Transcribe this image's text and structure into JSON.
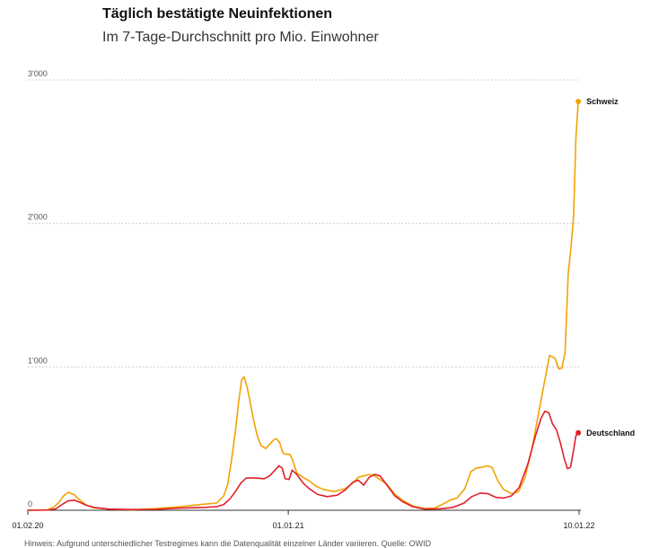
{
  "header": {
    "title": "Täglich bestätigte Neuinfektionen",
    "subtitle": "Im 7-Tage-Durchschnitt pro Mio. Einwohner"
  },
  "footnote": "Hinweis: Aufgrund unterschiedlicher Testregimes kann die Datenqualität einzelner Länder variieren. Quelle: OWID",
  "colors": {
    "schweiz": "#f2a300",
    "deutschland": "#e0202a",
    "grid": "#cfcfcf",
    "axis": "#333333"
  },
  "chart_data": {
    "type": "line",
    "title": "Täglich bestätigte Neuinfektionen",
    "subtitle": "Im 7-Tage-Durchschnitt pro Mio. Einwohner",
    "xlabel": "",
    "ylabel": "",
    "xlim": [
      "2020-02-01",
      "2022-01-10"
    ],
    "ylim": [
      0,
      3000
    ],
    "grid": true,
    "x_ticks": [
      {
        "date": "2020-02-01",
        "label": "01.02.20"
      },
      {
        "date": "2021-01-01",
        "label": "01.01.21"
      },
      {
        "date": "2022-01-10",
        "label": "10.01.22"
      }
    ],
    "y_ticks": [
      {
        "value": 0,
        "label": "0"
      },
      {
        "value": 1000,
        "label": "1'000"
      },
      {
        "value": 2000,
        "label": "2'000"
      },
      {
        "value": 3000,
        "label": "3'000"
      }
    ],
    "series": [
      {
        "name": "Schweiz",
        "color": "#f2a300",
        "points": [
          [
            "2020-02-01",
            0
          ],
          [
            "2020-02-25",
            2
          ],
          [
            "2020-03-05",
            20
          ],
          [
            "2020-03-12",
            55
          ],
          [
            "2020-03-18",
            100
          ],
          [
            "2020-03-24",
            125
          ],
          [
            "2020-03-31",
            110
          ],
          [
            "2020-04-07",
            75
          ],
          [
            "2020-04-15",
            40
          ],
          [
            "2020-04-25",
            18
          ],
          [
            "2020-05-15",
            8
          ],
          [
            "2020-06-15",
            4
          ],
          [
            "2020-07-15",
            12
          ],
          [
            "2020-08-15",
            25
          ],
          [
            "2020-09-01",
            35
          ],
          [
            "2020-09-20",
            45
          ],
          [
            "2020-10-01",
            50
          ],
          [
            "2020-10-10",
            100
          ],
          [
            "2020-10-15",
            180
          ],
          [
            "2020-10-20",
            350
          ],
          [
            "2020-10-25",
            550
          ],
          [
            "2020-10-29",
            750
          ],
          [
            "2020-11-02",
            910
          ],
          [
            "2020-11-05",
            930
          ],
          [
            "2020-11-09",
            860
          ],
          [
            "2020-11-12",
            780
          ],
          [
            "2020-11-17",
            640
          ],
          [
            "2020-11-22",
            520
          ],
          [
            "2020-11-27",
            450
          ],
          [
            "2020-12-03",
            430
          ],
          [
            "2020-12-08",
            460
          ],
          [
            "2020-12-13",
            490
          ],
          [
            "2020-12-17",
            500
          ],
          [
            "2020-12-21",
            470
          ],
          [
            "2020-12-25",
            400
          ],
          [
            "2020-12-29",
            390
          ],
          [
            "2021-01-03",
            390
          ],
          [
            "2021-01-06",
            360
          ],
          [
            "2021-01-12",
            260
          ],
          [
            "2021-01-20",
            230
          ],
          [
            "2021-01-28",
            205
          ],
          [
            "2021-02-05",
            170
          ],
          [
            "2021-02-15",
            145
          ],
          [
            "2021-03-01",
            130
          ],
          [
            "2021-03-15",
            150
          ],
          [
            "2021-03-25",
            190
          ],
          [
            "2021-04-01",
            230
          ],
          [
            "2021-04-08",
            240
          ],
          [
            "2021-04-15",
            250
          ],
          [
            "2021-04-22",
            240
          ],
          [
            "2021-04-29",
            215
          ],
          [
            "2021-05-08",
            180
          ],
          [
            "2021-05-18",
            110
          ],
          [
            "2021-05-28",
            70
          ],
          [
            "2021-06-10",
            30
          ],
          [
            "2021-06-25",
            12
          ],
          [
            "2021-07-08",
            15
          ],
          [
            "2021-07-18",
            40
          ],
          [
            "2021-07-28",
            70
          ],
          [
            "2021-08-06",
            85
          ],
          [
            "2021-08-16",
            150
          ],
          [
            "2021-08-24",
            270
          ],
          [
            "2021-08-31",
            295
          ],
          [
            "2021-09-07",
            300
          ],
          [
            "2021-09-14",
            310
          ],
          [
            "2021-09-20",
            300
          ],
          [
            "2021-09-28",
            200
          ],
          [
            "2021-10-05",
            145
          ],
          [
            "2021-10-15",
            115
          ],
          [
            "2021-10-24",
            130
          ],
          [
            "2021-11-01",
            220
          ],
          [
            "2021-11-10",
            420
          ],
          [
            "2021-11-18",
            650
          ],
          [
            "2021-11-26",
            880
          ],
          [
            "2021-12-03",
            1080
          ],
          [
            "2021-12-10",
            1060
          ],
          [
            "2021-12-15",
            985
          ],
          [
            "2021-12-19",
            990
          ],
          [
            "2021-12-23",
            1100
          ],
          [
            "2021-12-27",
            1650
          ],
          [
            "2021-12-30",
            1800
          ],
          [
            "2022-01-03",
            2050
          ],
          [
            "2022-01-06",
            2600
          ],
          [
            "2022-01-09",
            2850
          ]
        ]
      },
      {
        "name": "Deutschland",
        "color": "#e0202a",
        "points": [
          [
            "2020-02-01",
            0
          ],
          [
            "2020-02-28",
            2
          ],
          [
            "2020-03-08",
            10
          ],
          [
            "2020-03-16",
            40
          ],
          [
            "2020-03-24",
            65
          ],
          [
            "2020-04-01",
            70
          ],
          [
            "2020-04-08",
            55
          ],
          [
            "2020-04-16",
            35
          ],
          [
            "2020-04-28",
            18
          ],
          [
            "2020-05-15",
            8
          ],
          [
            "2020-06-15",
            5
          ],
          [
            "2020-07-15",
            6
          ],
          [
            "2020-08-15",
            15
          ],
          [
            "2020-09-15",
            20
          ],
          [
            "2020-10-01",
            25
          ],
          [
            "2020-10-10",
            40
          ],
          [
            "2020-10-18",
            80
          ],
          [
            "2020-10-25",
            130
          ],
          [
            "2020-11-01",
            190
          ],
          [
            "2020-11-08",
            225
          ],
          [
            "2020-11-20",
            225
          ],
          [
            "2020-12-01",
            220
          ],
          [
            "2020-12-08",
            240
          ],
          [
            "2020-12-15",
            280
          ],
          [
            "2020-12-20",
            310
          ],
          [
            "2020-12-24",
            295
          ],
          [
            "2020-12-28",
            220
          ],
          [
            "2021-01-02",
            215
          ],
          [
            "2021-01-06",
            280
          ],
          [
            "2021-01-12",
            250
          ],
          [
            "2021-01-20",
            190
          ],
          [
            "2021-01-28",
            150
          ],
          [
            "2021-02-08",
            110
          ],
          [
            "2021-02-20",
            95
          ],
          [
            "2021-03-05",
            105
          ],
          [
            "2021-03-15",
            140
          ],
          [
            "2021-03-25",
            195
          ],
          [
            "2021-04-01",
            210
          ],
          [
            "2021-04-08",
            175
          ],
          [
            "2021-04-15",
            230
          ],
          [
            "2021-04-22",
            250
          ],
          [
            "2021-04-29",
            240
          ],
          [
            "2021-05-08",
            175
          ],
          [
            "2021-05-18",
            100
          ],
          [
            "2021-05-28",
            60
          ],
          [
            "2021-06-10",
            25
          ],
          [
            "2021-06-25",
            8
          ],
          [
            "2021-07-15",
            10
          ],
          [
            "2021-08-01",
            20
          ],
          [
            "2021-08-15",
            50
          ],
          [
            "2021-08-25",
            95
          ],
          [
            "2021-09-05",
            120
          ],
          [
            "2021-09-15",
            115
          ],
          [
            "2021-09-25",
            90
          ],
          [
            "2021-10-05",
            85
          ],
          [
            "2021-10-15",
            100
          ],
          [
            "2021-10-25",
            160
          ],
          [
            "2021-11-05",
            320
          ],
          [
            "2021-11-15",
            520
          ],
          [
            "2021-11-22",
            640
          ],
          [
            "2021-11-27",
            690
          ],
          [
            "2021-12-02",
            680
          ],
          [
            "2021-12-07",
            600
          ],
          [
            "2021-12-12",
            560
          ],
          [
            "2021-12-17",
            470
          ],
          [
            "2021-12-22",
            360
          ],
          [
            "2021-12-26",
            290
          ],
          [
            "2021-12-30",
            300
          ],
          [
            "2022-01-03",
            420
          ],
          [
            "2022-01-06",
            520
          ],
          [
            "2022-01-09",
            540
          ]
        ]
      }
    ]
  }
}
